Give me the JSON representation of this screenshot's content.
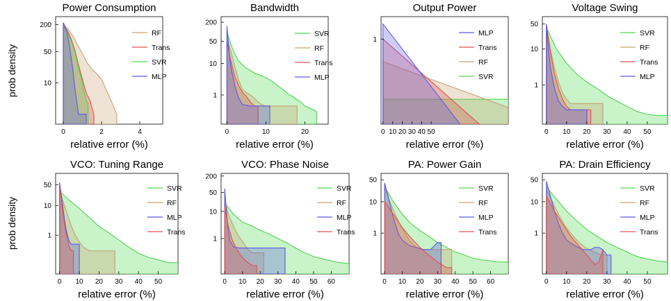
{
  "colors": {
    "SVR": "#4cd64c",
    "RF": "#c8a070",
    "Trans": "#e05050",
    "MLP": "#5a5ae6"
  },
  "ylabel": "prob density",
  "chart_data": [
    {
      "type": "area",
      "title": "Power Consumption",
      "xlabel": "relative error (%)",
      "xlim": [
        -0.4,
        5.2
      ],
      "xticks": [
        0,
        2,
        4
      ],
      "ylim": [
        1.2,
        300
      ],
      "yscale": "log",
      "yticks": [
        10,
        50,
        200
      ],
      "legend": [
        "RF",
        "Trans",
        "SVR",
        "MLP"
      ],
      "series": [
        {
          "name": "RF",
          "x": [
            0,
            0.25,
            0.5,
            0.75,
            1.0,
            1.25,
            1.5,
            1.75,
            2.0,
            2.25,
            2.5,
            2.8
          ],
          "y": [
            200,
            160,
            110,
            70,
            45,
            28,
            20,
            16,
            12,
            7,
            4,
            2
          ]
        },
        {
          "name": "Trans",
          "x": [
            0,
            0.2,
            0.4,
            0.6,
            0.8,
            1.0,
            1.2,
            1.4,
            1.6
          ],
          "y": [
            190,
            150,
            100,
            55,
            25,
            12,
            6,
            4,
            2
          ]
        },
        {
          "name": "SVR",
          "x": [
            0,
            0.2,
            0.4,
            0.6,
            0.8,
            1.0,
            1.1,
            1.3
          ],
          "y": [
            180,
            140,
            90,
            50,
            22,
            10,
            6,
            3
          ]
        },
        {
          "name": "MLP",
          "x": [
            0,
            0.1,
            0.2,
            0.3,
            0.4,
            0.5,
            0.6,
            0.7,
            0.8,
            1.0,
            1.2
          ],
          "y": [
            220,
            180,
            130,
            80,
            40,
            20,
            8,
            4,
            2,
            2,
            2
          ]
        }
      ]
    },
    {
      "type": "area",
      "title": "Bandwidth",
      "xlabel": "relative error (%)",
      "xlim": [
        -1.5,
        26
      ],
      "xticks": [
        0,
        10,
        20
      ],
      "ylim": [
        0.12,
        300
      ],
      "yscale": "log",
      "yticks": [
        1,
        10,
        50,
        200
      ],
      "legend": [
        "SVR",
        "RF",
        "Trans",
        "MLP"
      ],
      "series": [
        {
          "name": "SVR",
          "x": [
            0,
            1,
            2,
            3,
            4,
            5,
            6,
            7,
            8,
            9,
            10,
            11,
            12,
            13,
            14,
            15,
            16,
            17,
            18,
            19,
            20,
            21,
            22,
            23
          ],
          "y": [
            100,
            40,
            20,
            12,
            9,
            7,
            6,
            5,
            4.5,
            4,
            3.5,
            3,
            2.5,
            2,
            1.6,
            1.3,
            1.0,
            0.9,
            0.7,
            0.6,
            0.45,
            0.4,
            0.35,
            0.3
          ]
        },
        {
          "name": "RF",
          "x": [
            0,
            1,
            2,
            3,
            4,
            5,
            6,
            7,
            8,
            9,
            10,
            12,
            14,
            16,
            18
          ],
          "y": [
            60,
            25,
            8,
            3,
            1.5,
            1.2,
            1.0,
            0.8,
            0.6,
            0.5,
            0.45,
            0.45,
            0.45,
            0.45,
            0.45
          ]
        },
        {
          "name": "Trans",
          "x": [
            0,
            1,
            2,
            3,
            4,
            5,
            6,
            7,
            8
          ],
          "y": [
            50,
            12,
            4,
            2,
            1.2,
            0.9,
            0.6,
            0.45,
            0.45
          ]
        },
        {
          "name": "MLP",
          "x": [
            0,
            0.5,
            1,
            2,
            3,
            4,
            6,
            8,
            10,
            11
          ],
          "y": [
            150,
            30,
            8,
            2,
            0.8,
            0.5,
            0.45,
            0.45,
            0.45,
            0.45
          ]
        }
      ]
    },
    {
      "type": "area",
      "title": "Output Power",
      "xlabel": "relative error (%)",
      "xlim": [
        -2,
        130
      ],
      "xticks": [
        0,
        10,
        20,
        30,
        40,
        50
      ],
      "ylim": [
        0.05,
        2.2
      ],
      "yscale": "log",
      "yticks": [
        1
      ],
      "legend": [
        "MLP",
        "Trans",
        "RF",
        "SVR"
      ],
      "series": [
        {
          "name": "SVR",
          "x": [
            0,
            130
          ],
          "y": [
            0.12,
            0.12
          ]
        },
        {
          "name": "RF",
          "x": [
            0,
            130
          ],
          "y": [
            0.45,
            0.09
          ]
        },
        {
          "name": "Trans",
          "x": [
            0,
            100
          ],
          "y": [
            1.0,
            0.05
          ]
        },
        {
          "name": "MLP",
          "x": [
            0,
            80
          ],
          "y": [
            1.7,
            0.05
          ]
        }
      ]
    },
    {
      "type": "area",
      "title": "Voltage Swing",
      "xlabel": "relative error (%)",
      "xlim": [
        -2,
        60
      ],
      "xticks": [
        0,
        10,
        20,
        30,
        40,
        50
      ],
      "ylim": [
        0.08,
        80
      ],
      "yscale": "log",
      "yticks": [
        1,
        10,
        50
      ],
      "legend": [
        "SVR",
        "RF",
        "Trans",
        "MLP"
      ],
      "series": [
        {
          "name": "SVR",
          "x": [
            0,
            5,
            10,
            15,
            20,
            25,
            30,
            35,
            40,
            45,
            50,
            55,
            60
          ],
          "y": [
            40,
            10,
            4,
            2,
            1.2,
            0.8,
            0.5,
            0.35,
            0.25,
            0.18,
            0.15,
            0.14,
            0.14
          ]
        },
        {
          "name": "RF",
          "x": [
            0,
            2,
            4,
            6,
            8,
            10,
            12,
            15,
            20,
            25,
            28
          ],
          "y": [
            50,
            10,
            3,
            1.2,
            0.6,
            0.4,
            0.3,
            0.3,
            0.3,
            0.3,
            0.3
          ]
        },
        {
          "name": "Trans",
          "x": [
            0,
            2,
            4,
            6,
            8,
            10,
            12,
            15,
            20,
            22
          ],
          "y": [
            45,
            8,
            2,
            0.8,
            0.4,
            0.25,
            0.2,
            0.2,
            0.2,
            0.2
          ]
        },
        {
          "name": "MLP",
          "x": [
            0,
            1,
            2,
            4,
            6,
            8,
            10,
            12,
            15,
            20
          ],
          "y": [
            50,
            10,
            3,
            0.8,
            0.35,
            0.25,
            0.2,
            0.2,
            0.2,
            0.2
          ]
        }
      ]
    },
    {
      "type": "area",
      "title": "VCO: Tuning Range",
      "xlabel": "relative error (%)",
      "xlim": [
        -2,
        60
      ],
      "xticks": [
        0,
        10,
        20,
        30,
        40,
        50
      ],
      "ylim": [
        0.05,
        120
      ],
      "yscale": "log",
      "yticks": [
        1,
        10,
        50
      ],
      "legend": [
        "SVR",
        "RF",
        "MLP",
        "Trans"
      ],
      "series": [
        {
          "name": "SVR",
          "x": [
            0,
            5,
            10,
            15,
            20,
            25,
            30,
            35,
            40,
            45,
            50,
            55,
            60
          ],
          "y": [
            30,
            15,
            8,
            4,
            2,
            1.2,
            0.7,
            0.4,
            0.25,
            0.18,
            0.15,
            0.12,
            0.12
          ]
        },
        {
          "name": "RF",
          "x": [
            0,
            2,
            4,
            6,
            8,
            10,
            12,
            15,
            20,
            25,
            28
          ],
          "y": [
            35,
            12,
            5,
            2,
            1.0,
            0.6,
            0.4,
            0.3,
            0.3,
            0.3,
            0.3
          ]
        },
        {
          "name": "MLP",
          "x": [
            0,
            1,
            2,
            3,
            4,
            5,
            6,
            8,
            10
          ],
          "y": [
            60,
            20,
            6,
            2,
            1,
            0.6,
            0.5,
            0.5,
            0.5
          ]
        },
        {
          "name": "Trans",
          "x": [
            0,
            1,
            2,
            3,
            4,
            5,
            6,
            7
          ],
          "y": [
            50,
            15,
            4,
            1.5,
            0.7,
            0.4,
            0.3,
            0.3
          ]
        }
      ]
    },
    {
      "type": "area",
      "title": "VCO: Phase Noise",
      "xlabel": "relative error (%)",
      "xlim": [
        -2,
        70
      ],
      "xticks": [
        0,
        10,
        20,
        30,
        40,
        50,
        60
      ],
      "ylim": [
        0.05,
        250
      ],
      "yscale": "log",
      "yticks": [
        1,
        10,
        50,
        200
      ],
      "legend": [
        "SVR",
        "RF",
        "MLP",
        "Trans"
      ],
      "series": [
        {
          "name": "SVR",
          "x": [
            0,
            5,
            10,
            15,
            20,
            25,
            30,
            35,
            40,
            45,
            50,
            55,
            60,
            65,
            70
          ],
          "y": [
            20,
            8,
            4,
            3,
            2,
            1.5,
            1.0,
            0.7,
            0.45,
            0.3,
            0.22,
            0.18,
            0.15,
            0.13,
            0.12
          ]
        },
        {
          "name": "RF",
          "x": [
            0,
            2,
            4,
            6,
            8,
            10,
            12,
            14,
            16,
            18,
            20,
            22
          ],
          "y": [
            30,
            8,
            4,
            2,
            1.2,
            0.8,
            0.5,
            0.35,
            0.3,
            0.3,
            0.3,
            0.3
          ]
        },
        {
          "name": "MLP",
          "x": [
            0,
            1,
            2,
            3,
            5,
            8,
            12,
            20,
            34
          ],
          "y": [
            70,
            10,
            2,
            0.8,
            0.5,
            0.45,
            0.45,
            0.45,
            0.45
          ]
        },
        {
          "name": "Trans",
          "x": [
            0,
            2,
            4,
            6,
            8,
            10,
            12,
            14,
            16,
            18
          ],
          "y": [
            15,
            3,
            1,
            0.5,
            0.3,
            0.2,
            0.15,
            0.12,
            0.1,
            0.1
          ]
        }
      ]
    },
    {
      "type": "area",
      "title": "PA: Power Gain",
      "xlabel": "relative error (%)",
      "xlim": [
        -2,
        70
      ],
      "xticks": [
        0,
        10,
        20,
        30,
        40,
        50,
        60
      ],
      "ylim": [
        0.05,
        80
      ],
      "yscale": "log",
      "yticks": [
        1,
        10,
        50
      ],
      "legend": [
        "SVR",
        "RF",
        "MLP",
        "Trans"
      ],
      "series": [
        {
          "name": "SVR",
          "x": [
            0,
            5,
            10,
            15,
            20,
            25,
            30,
            35,
            40,
            45,
            50,
            55,
            60,
            65,
            70
          ],
          "y": [
            30,
            10,
            4,
            2,
            1.2,
            0.8,
            0.5,
            0.35,
            0.25,
            0.2,
            0.16,
            0.14,
            0.13,
            0.12,
            0.12
          ]
        },
        {
          "name": "RF",
          "x": [
            0,
            3,
            6,
            9,
            12,
            15,
            18,
            21,
            24,
            27,
            30,
            34,
            38
          ],
          "y": [
            30,
            10,
            4,
            1.8,
            0.9,
            0.5,
            0.35,
            0.3,
            0.3,
            0.3,
            0.3,
            0.3,
            0.3
          ]
        },
        {
          "name": "MLP",
          "x": [
            0,
            2,
            4,
            6,
            8,
            10,
            14,
            18,
            22,
            26,
            30,
            32
          ],
          "y": [
            40,
            15,
            5,
            2,
            0.9,
            0.6,
            0.4,
            0.35,
            0.3,
            0.3,
            0.5,
            0.5
          ]
        },
        {
          "name": "Trans",
          "x": [
            0,
            5,
            10,
            15,
            20,
            25,
            30,
            35,
            38
          ],
          "y": [
            10,
            4,
            1.5,
            0.7,
            0.35,
            0.2,
            0.12,
            0.08,
            0.08
          ]
        }
      ]
    },
    {
      "type": "area",
      "title": "PA: Drain Efficiency",
      "xlabel": "relative error (%)",
      "xlim": [
        -2,
        60
      ],
      "xticks": [
        0,
        10,
        20,
        30,
        40,
        50
      ],
      "ylim": [
        0.05,
        80
      ],
      "yscale": "log",
      "yticks": [
        1,
        10,
        50
      ],
      "legend": [
        "SVR",
        "RF",
        "MLP",
        "Trans"
      ],
      "series": [
        {
          "name": "SVR",
          "x": [
            0,
            5,
            10,
            15,
            20,
            25,
            30,
            35,
            40,
            45,
            50,
            55,
            60
          ],
          "y": [
            30,
            12,
            5,
            2.5,
            1.3,
            0.8,
            0.5,
            0.35,
            0.25,
            0.18,
            0.15,
            0.13,
            0.12
          ]
        },
        {
          "name": "RF",
          "x": [
            0,
            3,
            6,
            9,
            12,
            15,
            18,
            21,
            24,
            27,
            30
          ],
          "y": [
            25,
            10,
            4,
            1.8,
            1.0,
            0.6,
            0.4,
            0.3,
            0.25,
            0.2,
            0.2
          ]
        },
        {
          "name": "MLP",
          "x": [
            0,
            2,
            4,
            6,
            8,
            10,
            14,
            18,
            22,
            24,
            26,
            28,
            30,
            32
          ],
          "y": [
            45,
            15,
            5,
            2,
            1.0,
            0.6,
            0.4,
            0.3,
            0.3,
            0.35,
            0.35,
            0.3,
            0.2,
            0.2
          ]
        },
        {
          "name": "Trans",
          "x": [
            0,
            4,
            8,
            12,
            16,
            20,
            24,
            26,
            28
          ],
          "y": [
            15,
            5,
            2,
            0.8,
            0.4,
            0.2,
            0.1,
            0.12,
            0.3
          ]
        }
      ]
    }
  ]
}
